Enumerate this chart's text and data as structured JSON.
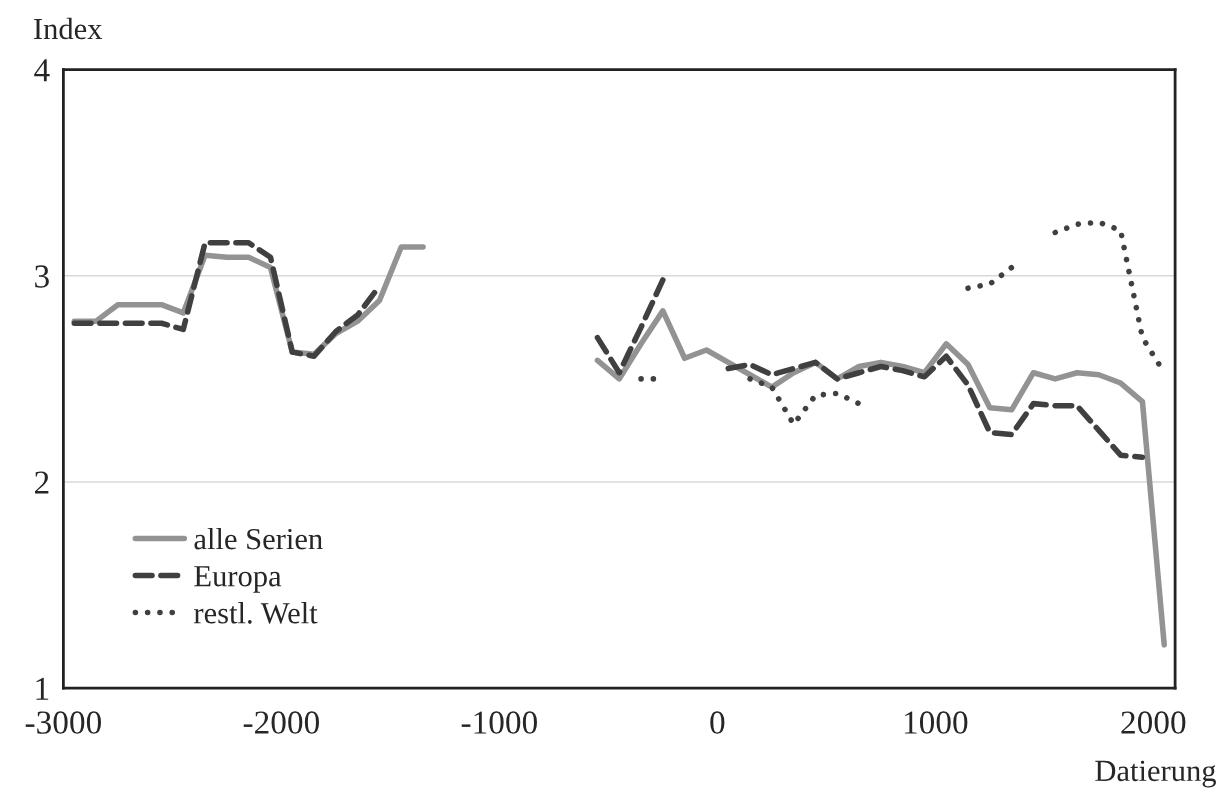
{
  "chart_data": {
    "type": "line",
    "xlabel": "Datierung",
    "ylabel": "Index",
    "xlim": [
      -3000,
      2100
    ],
    "xticks": [
      -3000,
      -2000,
      -1000,
      0,
      1000,
      2000
    ],
    "ylim": [
      1,
      4
    ],
    "yticks": [
      1,
      2,
      3,
      4
    ],
    "grid": "y",
    "legend": "bottom left",
    "series": [
      {
        "name": "alle Serien",
        "color": "#939393",
        "line_style": "solid",
        "x": [
          -2950,
          -2850,
          -2750,
          -2650,
          -2550,
          -2450,
          -2350,
          -2250,
          -2150,
          -2050,
          -1950,
          -1850,
          -1750,
          -1650,
          -1550,
          -1450,
          -1350,
          -1250,
          -550,
          -450,
          -350,
          -250,
          -150,
          -50,
          50,
          150,
          250,
          350,
          450,
          550,
          650,
          750,
          850,
          950,
          1050,
          1150,
          1250,
          1350,
          1450,
          1550,
          1650,
          1750,
          1850,
          1950,
          2050
        ],
        "values": [
          2.78,
          2.78,
          2.86,
          2.86,
          2.86,
          2.82,
          3.1,
          3.09,
          3.09,
          3.04,
          2.63,
          2.62,
          2.72,
          2.78,
          2.88,
          3.14,
          3.14,
          null,
          2.59,
          2.5,
          2.67,
          2.83,
          2.6,
          2.64,
          2.58,
          2.52,
          2.46,
          2.53,
          2.58,
          2.5,
          2.56,
          2.58,
          2.56,
          2.53,
          2.67,
          2.57,
          2.36,
          2.35,
          2.53,
          2.5,
          2.53,
          2.52,
          2.48,
          2.39,
          1.21
        ]
      },
      {
        "name": "Europa",
        "color": "#404040",
        "line_style": "dashed",
        "x": [
          -2950,
          -2850,
          -2750,
          -2650,
          -2550,
          -2450,
          -2350,
          -2250,
          -2150,
          -2050,
          -1950,
          -1850,
          -1750,
          -1650,
          -1550,
          -1450,
          -550,
          -450,
          -350,
          -250,
          -150,
          50,
          150,
          250,
          350,
          450,
          550,
          650,
          750,
          850,
          950,
          1050,
          1150,
          1250,
          1350,
          1450,
          1550,
          1650,
          1750,
          1850,
          1950
        ],
        "values": [
          2.77,
          2.77,
          2.77,
          2.77,
          2.77,
          2.74,
          3.16,
          3.16,
          3.16,
          3.09,
          2.63,
          2.61,
          2.73,
          2.81,
          2.95,
          null,
          2.7,
          2.53,
          2.75,
          2.98,
          null,
          2.55,
          2.57,
          2.52,
          2.55,
          2.58,
          2.5,
          2.53,
          2.56,
          2.54,
          2.51,
          2.61,
          2.47,
          2.24,
          2.23,
          2.38,
          2.37,
          2.37,
          2.25,
          2.13,
          2.12
        ]
      },
      {
        "name": "restl. Welt",
        "color": "#404040",
        "line_style": "dotted",
        "x": [
          -350,
          -250,
          -150,
          150,
          250,
          350,
          450,
          550,
          650,
          750,
          1150,
          1250,
          1350,
          1450,
          1550,
          1650,
          1750,
          1850,
          1950,
          2050
        ],
        "values": [
          2.5,
          2.5,
          null,
          2.5,
          2.46,
          2.28,
          2.42,
          2.43,
          2.38,
          null,
          2.94,
          2.96,
          3.04,
          null,
          3.21,
          3.25,
          3.26,
          3.22,
          2.7,
          2.53
        ]
      }
    ]
  }
}
